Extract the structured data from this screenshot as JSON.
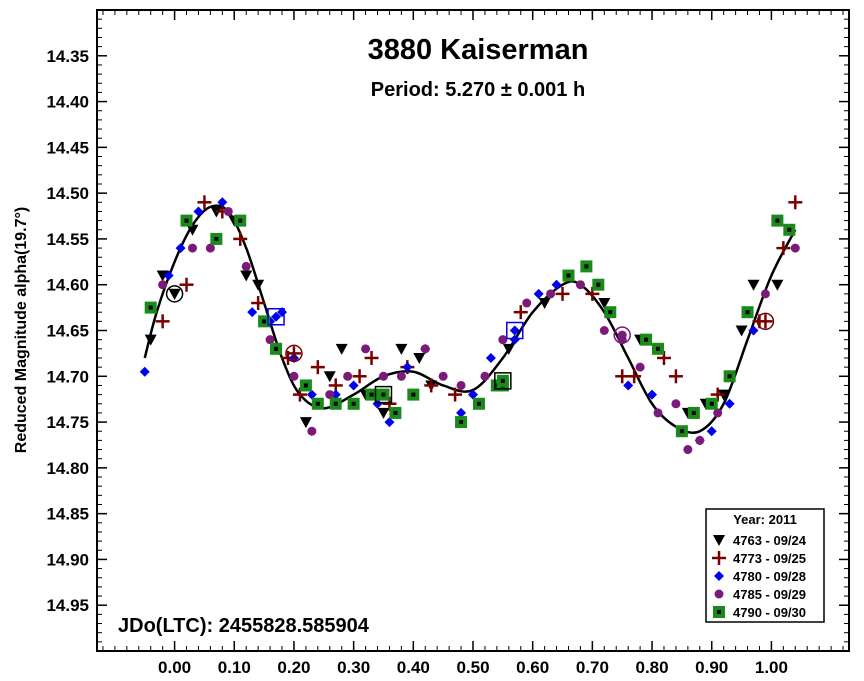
{
  "chart_data": {
    "type": "scatter",
    "title": "3880 Kaiserman",
    "subtitle": "Period: 5.270 ± 0.001 h",
    "ylabel": "Reduced Magnitude alpha(19.7°)",
    "xlabel": "",
    "annotation": "JDo(LTC): 2455828.585904",
    "xlim": [
      -0.13,
      1.13
    ],
    "ylim": [
      14.3,
      15.0
    ],
    "y_inverted": true,
    "x_ticks": [
      "0.00",
      "0.10",
      "0.20",
      "0.30",
      "0.40",
      "0.50",
      "0.60",
      "0.70",
      "0.80",
      "0.90",
      "1.00"
    ],
    "x_tick_values": [
      0,
      0.1,
      0.2,
      0.3,
      0.4,
      0.5,
      0.6,
      0.7,
      0.8,
      0.9,
      1.0
    ],
    "y_ticks": [
      "14.35",
      "14.40",
      "14.45",
      "14.50",
      "14.55",
      "14.60",
      "14.65",
      "14.70",
      "14.75",
      "14.80",
      "14.85",
      "14.90",
      "14.95"
    ],
    "y_tick_values": [
      14.35,
      14.4,
      14.45,
      14.5,
      14.55,
      14.6,
      14.65,
      14.7,
      14.75,
      14.8,
      14.85,
      14.9,
      14.95
    ],
    "grid": false,
    "legend": {
      "title": "Year: 2011",
      "position": "bottom-right"
    },
    "fit_curve": {
      "x": [
        -0.05,
        -0.03,
        0.0,
        0.03,
        0.06,
        0.09,
        0.12,
        0.15,
        0.18,
        0.21,
        0.25,
        0.3,
        0.35,
        0.4,
        0.45,
        0.5,
        0.55,
        0.6,
        0.65,
        0.68,
        0.72,
        0.76,
        0.8,
        0.84,
        0.88,
        0.92,
        0.96,
        1.0,
        1.04
      ],
      "y": [
        14.68,
        14.63,
        14.575,
        14.535,
        14.515,
        14.52,
        14.56,
        14.62,
        14.68,
        14.72,
        14.735,
        14.72,
        14.7,
        14.695,
        14.71,
        14.715,
        14.68,
        14.63,
        14.6,
        14.6,
        14.63,
        14.68,
        14.73,
        14.755,
        14.76,
        14.73,
        14.66,
        14.59,
        14.54
      ]
    },
    "series": [
      {
        "name": "4763 - 09/24",
        "marker": "triangle-down",
        "color": "#000000",
        "x": [
          -0.04,
          -0.02,
          0.0,
          0.03,
          0.07,
          0.1,
          0.12,
          0.14,
          0.22,
          0.26,
          0.28,
          0.32,
          0.35,
          0.38,
          0.41,
          0.43,
          0.56,
          0.62,
          0.66,
          0.72,
          0.78,
          0.86,
          0.89,
          0.92,
          0.95,
          0.97,
          1.01,
          1.03
        ],
        "y": [
          14.66,
          14.59,
          14.61,
          14.54,
          14.52,
          14.53,
          14.59,
          14.6,
          14.75,
          14.7,
          14.67,
          14.72,
          14.74,
          14.67,
          14.68,
          14.71,
          14.67,
          14.62,
          14.59,
          14.62,
          14.66,
          14.74,
          14.73,
          14.72,
          14.65,
          14.6,
          14.6,
          14.54
        ]
      },
      {
        "name": "4773 - 09/25",
        "marker": "plus",
        "color": "#7a0000",
        "x": [
          -0.02,
          0.02,
          0.05,
          0.08,
          0.11,
          0.14,
          0.19,
          0.21,
          0.24,
          0.27,
          0.31,
          0.33,
          0.36,
          0.39,
          0.43,
          0.47,
          0.58,
          0.65,
          0.7,
          0.75,
          0.77,
          0.82,
          0.84,
          0.91,
          0.98,
          1.02,
          1.04
        ],
        "y": [
          14.64,
          14.6,
          14.51,
          14.52,
          14.55,
          14.62,
          14.68,
          14.72,
          14.69,
          14.71,
          14.7,
          14.68,
          14.73,
          14.69,
          14.71,
          14.72,
          14.63,
          14.61,
          14.61,
          14.7,
          14.7,
          14.68,
          14.7,
          14.72,
          14.64,
          14.56,
          14.51
        ]
      },
      {
        "name": "4780 - 09/28",
        "marker": "diamond",
        "color": "#0000ee",
        "x": [
          -0.05,
          -0.01,
          0.01,
          0.04,
          0.08,
          0.13,
          0.16,
          0.18,
          0.2,
          0.23,
          0.27,
          0.3,
          0.34,
          0.36,
          0.39,
          0.42,
          0.48,
          0.5,
          0.53,
          0.57,
          0.61,
          0.64,
          0.76,
          0.8,
          0.85,
          0.88,
          0.9,
          0.93,
          0.97
        ],
        "y": [
          14.695,
          14.59,
          14.56,
          14.52,
          14.51,
          14.63,
          14.64,
          14.63,
          14.68,
          14.72,
          14.72,
          14.71,
          14.73,
          14.75,
          14.69,
          14.67,
          14.74,
          14.72,
          14.68,
          14.66,
          14.61,
          14.6,
          14.71,
          14.72,
          14.76,
          14.77,
          14.76,
          14.73,
          14.65
        ]
      },
      {
        "name": "4785 - 09/29",
        "marker": "circle",
        "color": "#7a1a7a",
        "x": [
          -0.02,
          0.03,
          0.06,
          0.09,
          0.12,
          0.16,
          0.2,
          0.23,
          0.26,
          0.29,
          0.32,
          0.35,
          0.38,
          0.42,
          0.45,
          0.48,
          0.52,
          0.55,
          0.59,
          0.63,
          0.68,
          0.72,
          0.75,
          0.78,
          0.81,
          0.84,
          0.86,
          0.88,
          0.91,
          0.99,
          1.04
        ],
        "y": [
          14.6,
          14.56,
          14.56,
          14.52,
          14.58,
          14.66,
          14.7,
          14.76,
          14.72,
          14.7,
          14.67,
          14.7,
          14.7,
          14.67,
          14.7,
          14.71,
          14.7,
          14.66,
          14.62,
          14.61,
          14.6,
          14.65,
          14.66,
          14.69,
          14.74,
          14.73,
          14.78,
          14.77,
          14.74,
          14.61,
          14.56
        ]
      },
      {
        "name": "4790 - 09/30",
        "marker": "square",
        "color": "#1a8a1a",
        "x": [
          -0.04,
          0.02,
          0.07,
          0.11,
          0.15,
          0.17,
          0.22,
          0.24,
          0.27,
          0.3,
          0.33,
          0.37,
          0.4,
          0.48,
          0.51,
          0.54,
          0.55,
          0.66,
          0.69,
          0.71,
          0.73,
          0.79,
          0.81,
          0.85,
          0.87,
          0.9,
          0.93,
          0.96,
          1.01,
          1.03
        ],
        "y": [
          14.625,
          14.53,
          14.55,
          14.53,
          14.64,
          14.67,
          14.71,
          14.73,
          14.73,
          14.73,
          14.72,
          14.74,
          14.72,
          14.75,
          14.73,
          14.71,
          14.71,
          14.59,
          14.58,
          14.6,
          14.63,
          14.66,
          14.67,
          14.76,
          14.74,
          14.73,
          14.7,
          14.63,
          14.53,
          14.54
        ]
      }
    ],
    "highlighted_points": [
      {
        "series": "4763 - 09/24",
        "x": 0.0,
        "y": 14.61
      },
      {
        "series": "4773 - 09/25",
        "x": 0.2,
        "y": 14.675
      },
      {
        "series": "4780 - 09/28",
        "x": 0.17,
        "y": 14.635
      },
      {
        "series": "4780 - 09/28",
        "x": 0.57,
        "y": 14.65
      },
      {
        "series": "4785 - 09/29",
        "x": 0.75,
        "y": 14.655
      },
      {
        "series": "4790 - 09/30",
        "x": 0.35,
        "y": 14.72
      },
      {
        "series": "4790 - 09/30",
        "x": 0.55,
        "y": 14.705
      },
      {
        "series": "4773 - 09/25",
        "x": 0.99,
        "y": 14.64
      }
    ]
  }
}
